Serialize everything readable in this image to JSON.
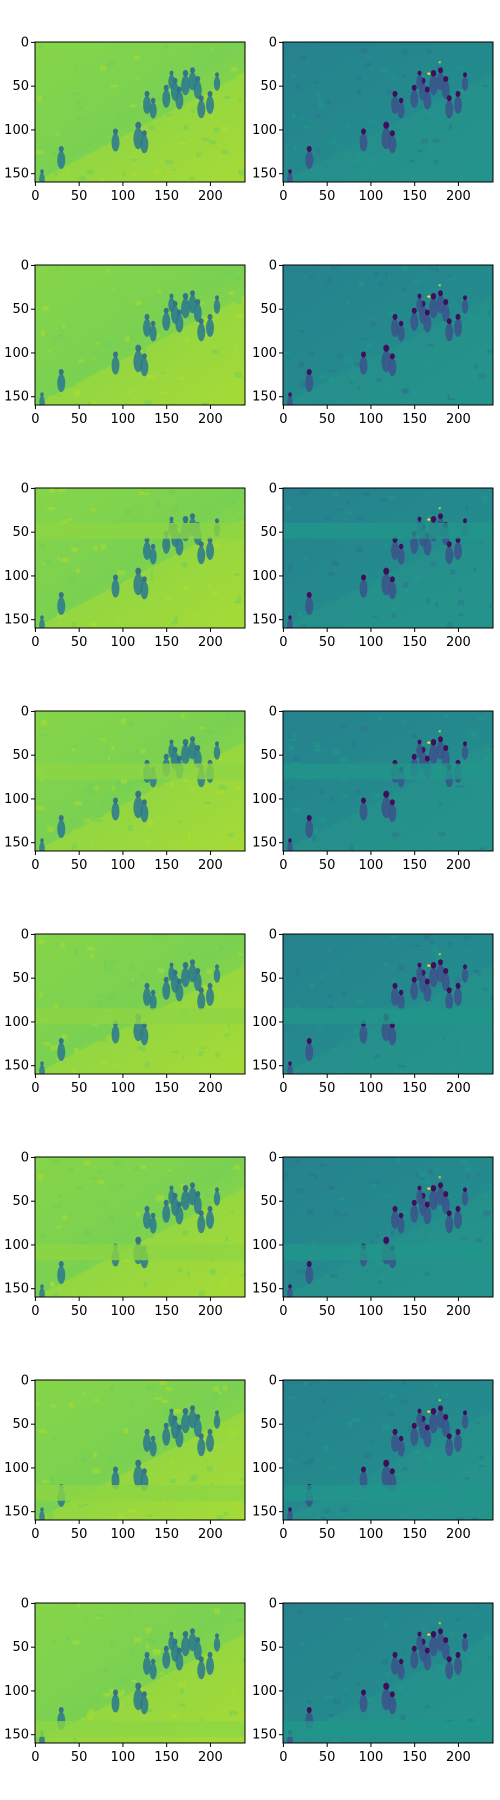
{
  "figure": {
    "rows": 8,
    "cols": 2,
    "x_ticks": [
      "0",
      "50",
      "100",
      "150",
      "200"
    ],
    "y_ticks": [
      "0",
      "50",
      "100",
      "150"
    ],
    "colormap": "viridis"
  },
  "colors": {
    "left_panel_base": "#7fd34e",
    "left_panel_light": "#a5db36",
    "right_panel_base": "#21918c",
    "figure_dark": "#3b528b",
    "figure_darkest": "#440154",
    "highlight": "#fde725"
  },
  "panels": [
    {
      "column": "left",
      "row": 1,
      "variant": "full"
    },
    {
      "column": "right",
      "row": 1,
      "variant": "full"
    },
    {
      "column": "left",
      "row": 2,
      "variant": "full"
    },
    {
      "column": "right",
      "row": 2,
      "variant": "full"
    },
    {
      "column": "left",
      "row": 3,
      "variant": "band-masked"
    },
    {
      "column": "right",
      "row": 3,
      "variant": "band-masked"
    },
    {
      "column": "left",
      "row": 4,
      "variant": "band-masked"
    },
    {
      "column": "right",
      "row": 4,
      "variant": "band-masked"
    },
    {
      "column": "left",
      "row": 5,
      "variant": "band-masked"
    },
    {
      "column": "right",
      "row": 5,
      "variant": "band-masked"
    },
    {
      "column": "left",
      "row": 6,
      "variant": "band-masked"
    },
    {
      "column": "right",
      "row": 6,
      "variant": "band-masked"
    },
    {
      "column": "left",
      "row": 7,
      "variant": "band-masked"
    },
    {
      "column": "right",
      "row": 7,
      "variant": "band-masked"
    },
    {
      "column": "left",
      "row": 8,
      "variant": "band-masked"
    },
    {
      "column": "right",
      "row": 8,
      "variant": "band-masked"
    }
  ]
}
